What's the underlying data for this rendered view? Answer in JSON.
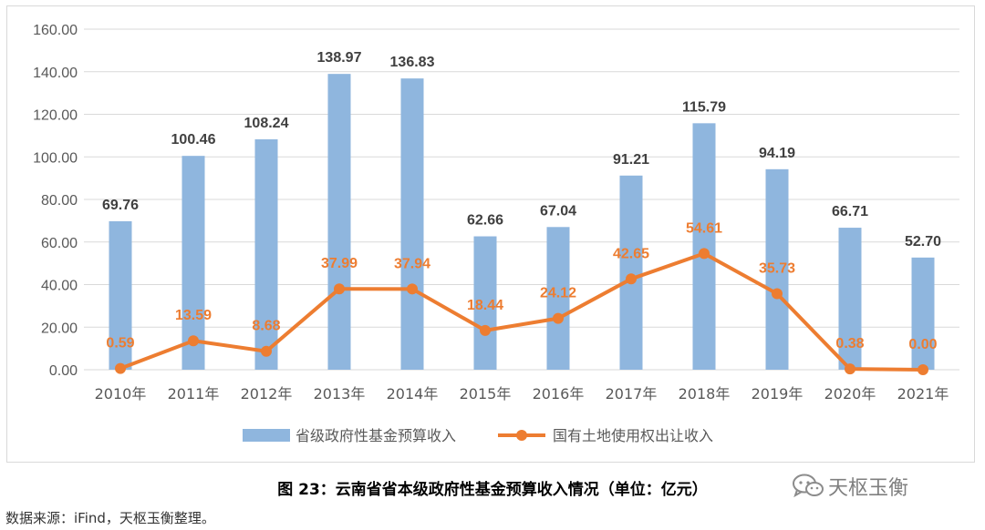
{
  "chart_data": {
    "type": "bar",
    "categories": [
      "2010年",
      "2011年",
      "2012年",
      "2013年",
      "2014年",
      "2015年",
      "2016年",
      "2017年",
      "2018年",
      "2019年",
      "2020年",
      "2021年"
    ],
    "series": [
      {
        "name": "省级政府性基金预算收入",
        "kind": "bar",
        "color": "#8fb6de",
        "values": [
          69.76,
          100.46,
          108.24,
          138.97,
          136.83,
          62.66,
          67.04,
          91.21,
          115.79,
          94.19,
          66.71,
          52.7
        ],
        "labels": [
          "69.76",
          "100.46",
          "108.24",
          "138.97",
          "136.83",
          "62.66",
          "67.04",
          "91.21",
          "115.79",
          "94.19",
          "66.71",
          "52.70"
        ]
      },
      {
        "name": "国有土地使用权出让收入",
        "kind": "line",
        "color": "#ed7d31",
        "values": [
          0.59,
          13.59,
          8.68,
          37.99,
          37.94,
          18.44,
          24.12,
          42.65,
          54.61,
          35.73,
          0.38,
          0.0
        ],
        "labels": [
          "0.59",
          "13.59",
          "8.68",
          "37.99",
          "37.94",
          "18.44",
          "24.12",
          "42.65",
          "54.61",
          "35.73",
          "0.38",
          "0.00"
        ]
      }
    ],
    "yticks": [
      "0.00",
      "20.00",
      "40.00",
      "60.00",
      "80.00",
      "100.00",
      "120.00",
      "140.00",
      "160.00"
    ],
    "ylim": [
      0,
      160
    ],
    "grid": true,
    "legend": "bottom"
  },
  "caption": "图 23：云南省省本级政府性基金预算收入情况（单位：亿元）",
  "source": "数据来源：iFind，天枢玉衡整理。",
  "watermark": "天枢玉衡",
  "watermark_icon": "wechat-icon"
}
